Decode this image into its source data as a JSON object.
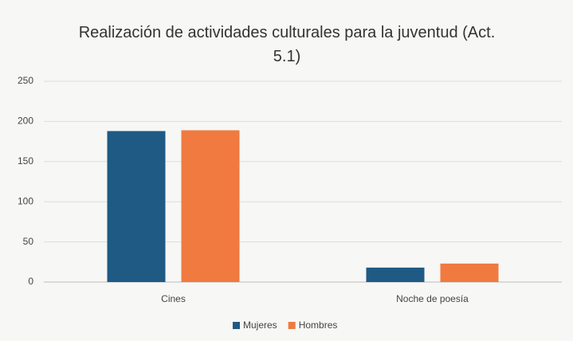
{
  "chart_data": {
    "type": "bar",
    "title": "Realización de actividades culturales para la juventud (Act. 5.1)",
    "categories": [
      "Cines",
      "Noche de poesía"
    ],
    "series": [
      {
        "name": "Mujeres",
        "color": "#1f5a85",
        "values": [
          188,
          18
        ]
      },
      {
        "name": "Hombres",
        "color": "#f07a3f",
        "values": [
          189,
          23
        ]
      }
    ],
    "ylim": [
      0,
      250
    ],
    "yticks": [
      0,
      50,
      100,
      150,
      200,
      250
    ],
    "grid": true,
    "legend": "bottom"
  }
}
